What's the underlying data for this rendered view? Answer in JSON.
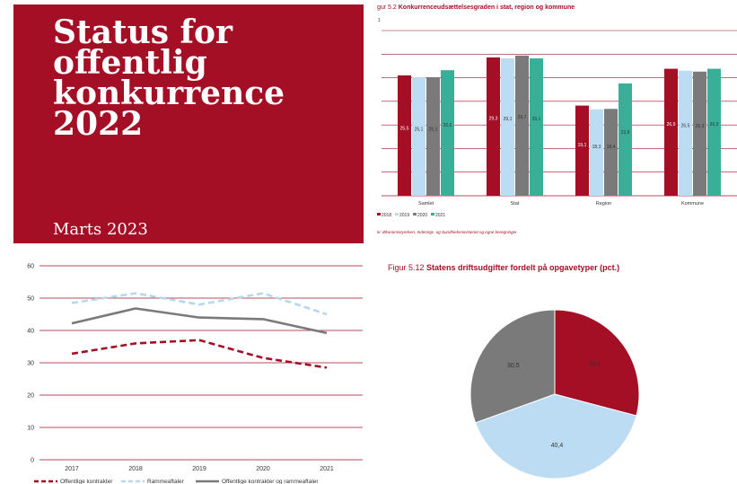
{
  "cover": {
    "title_lines": [
      "Status for",
      "offentlig",
      "konkurrence",
      "2022"
    ],
    "date": "Marts 2023",
    "bg_color": "#a50f25"
  },
  "bar_chart": {
    "figure_prefix": "gur 5.2",
    "title": "Konkurrenceudsættelsesgraden i stat, region og kommune",
    "unit_label": "1",
    "source": "le: Økonomistyrelsen, Indenrigs- og Sundhedsministeriet og egne beregninger"
  },
  "pie_chart": {
    "figure_prefix": "Figur 5.12",
    "title": "Statens driftsudgifter fordelt på opgavetyper (pct.)"
  },
  "chart_data": [
    {
      "type": "bar",
      "categories": [
        "Samlet",
        "Stat",
        "Region",
        "Kommune"
      ],
      "series": [
        {
          "name": "2018",
          "color": "#a50f25",
          "values": [
            25.5,
            29.3,
            19.1,
            26.9
          ]
        },
        {
          "name": "2019",
          "color": "#bcdcf4",
          "values": [
            25.1,
            29.1,
            18.3,
            26.5
          ]
        },
        {
          "name": "2020",
          "color": "#7a7a7a",
          "values": [
            25.1,
            29.7,
            18.4,
            26.3
          ]
        },
        {
          "name": "2021",
          "color": "#3aaf97",
          "values": [
            26.6,
            29.1,
            23.8,
            26.9
          ]
        }
      ],
      "value_labels": [
        [
          "25,5",
          "29,3",
          "19,1",
          "26,9"
        ],
        [
          "25,1",
          "29,1",
          "18,3",
          "26,5"
        ],
        [
          "25,1",
          "29,7",
          "18,4",
          "26,3"
        ],
        [
          "26,6",
          "29,1",
          "23,8",
          "26,9"
        ]
      ],
      "ylim": [
        0,
        35
      ],
      "grid": true,
      "legend": "bottom-left"
    },
    {
      "type": "line",
      "x": [
        2017,
        2018,
        2019,
        2020,
        2021
      ],
      "x_labels": [
        "2017",
        "2018",
        "2019",
        "2020",
        "2021"
      ],
      "series": [
        {
          "name": "Offentlige kontrakter",
          "color": "#a50f25",
          "style": "dashed",
          "values": [
            32.8,
            36.0,
            37.0,
            31.5,
            28.5
          ]
        },
        {
          "name": "Rammeaftaler",
          "color": "#b8d6ec",
          "style": "dashed",
          "values": [
            48.5,
            51.5,
            48.0,
            51.5,
            45.0
          ]
        },
        {
          "name": "Offentlige kontrakter og rammeaftaler",
          "color": "#7a7a7a",
          "style": "solid",
          "values": [
            42.2,
            46.8,
            44.0,
            43.5,
            39.2
          ]
        }
      ],
      "ylim": [
        0,
        60
      ],
      "yticks": [
        0,
        10,
        20,
        30,
        40,
        50,
        60
      ],
      "ytick_labels": [
        "0",
        "10",
        "20",
        "30",
        "40",
        "50",
        "60"
      ],
      "grid": true,
      "legend": "bottom"
    },
    {
      "type": "pie",
      "slices": [
        {
          "value": 29.1,
          "label": "29,1",
          "color": "#a50f25"
        },
        {
          "value": 40.4,
          "label": "40,4",
          "color": "#bcdcf4"
        },
        {
          "value": 30.5,
          "label": "30,5",
          "color": "#7a7a7a"
        }
      ]
    }
  ]
}
